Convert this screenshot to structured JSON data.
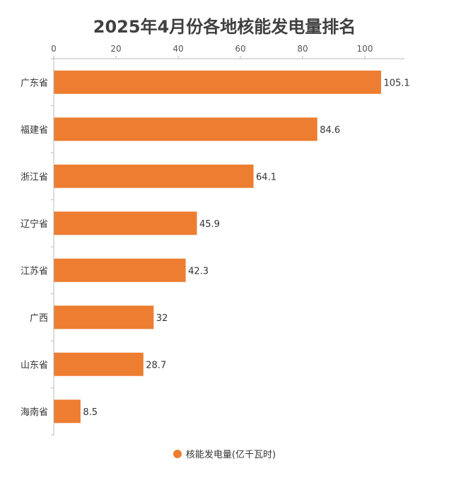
{
  "chart_data": {
    "type": "bar",
    "orientation": "horizontal",
    "title": "2025年4月份各地核能发电量排名",
    "categories": [
      "广东省",
      "福建省",
      "浙江省",
      "辽宁省",
      "江苏省",
      "广西",
      "山东省",
      "海南省"
    ],
    "series": [
      {
        "name": "核能发电量(亿千瓦时)",
        "values": [
          105.1,
          84.6,
          64.1,
          45.9,
          42.3,
          32,
          28.7,
          8.5
        ],
        "color": "#ED7D31"
      }
    ],
    "xlim": [
      0,
      110
    ],
    "xticks": [
      0,
      20,
      40,
      60,
      80,
      100
    ],
    "x_axis_position": "top",
    "grid": false,
    "legend_position": "bottom-center",
    "data_labels": true
  }
}
